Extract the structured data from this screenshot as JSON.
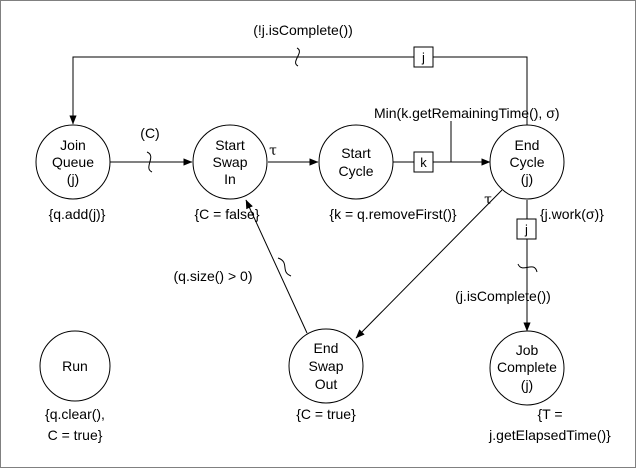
{
  "nodes": {
    "join_queue": {
      "lines": [
        "Join",
        "Queue",
        "(j)"
      ],
      "action": "{q.add(j)}"
    },
    "start_swap_in": {
      "lines": [
        "Start",
        "Swap",
        "In"
      ],
      "action": "{C = false}"
    },
    "start_cycle": {
      "lines": [
        "Start",
        "Cycle"
      ],
      "action": "{k = q.removeFirst()}"
    },
    "end_cycle": {
      "lines": [
        "End",
        "Cycle",
        "(j)"
      ],
      "action": "{j.work(σ)}"
    },
    "end_swap_out": {
      "lines": [
        "End",
        "Swap",
        "Out"
      ],
      "action": "{C = true}"
    },
    "job_complete": {
      "lines": [
        "Job",
        "Complete",
        "(j)"
      ],
      "action_lines": [
        "{T =",
        "j.getElapsedTime()}"
      ]
    },
    "run": {
      "lines": [
        "Run"
      ],
      "action_lines": [
        "{q.clear(),",
        "C = true}"
      ]
    }
  },
  "edge_labels": {
    "not_complete": "(!j.isComplete())",
    "c_condition": "(C)",
    "tau_swap_in": "τ",
    "tau_end_cycle": "τ",
    "min_delay": "Min(k.getRemainingTime(), σ)",
    "queue_size": "(q.size() > 0)",
    "is_complete": "(j.isComplete())"
  },
  "parameter_boxes": {
    "loop_j": "j",
    "cycle_k": "k",
    "complete_j": "j"
  },
  "colors": {
    "stroke": "#000000",
    "fill": "#ffffff",
    "frame": "#808080"
  }
}
